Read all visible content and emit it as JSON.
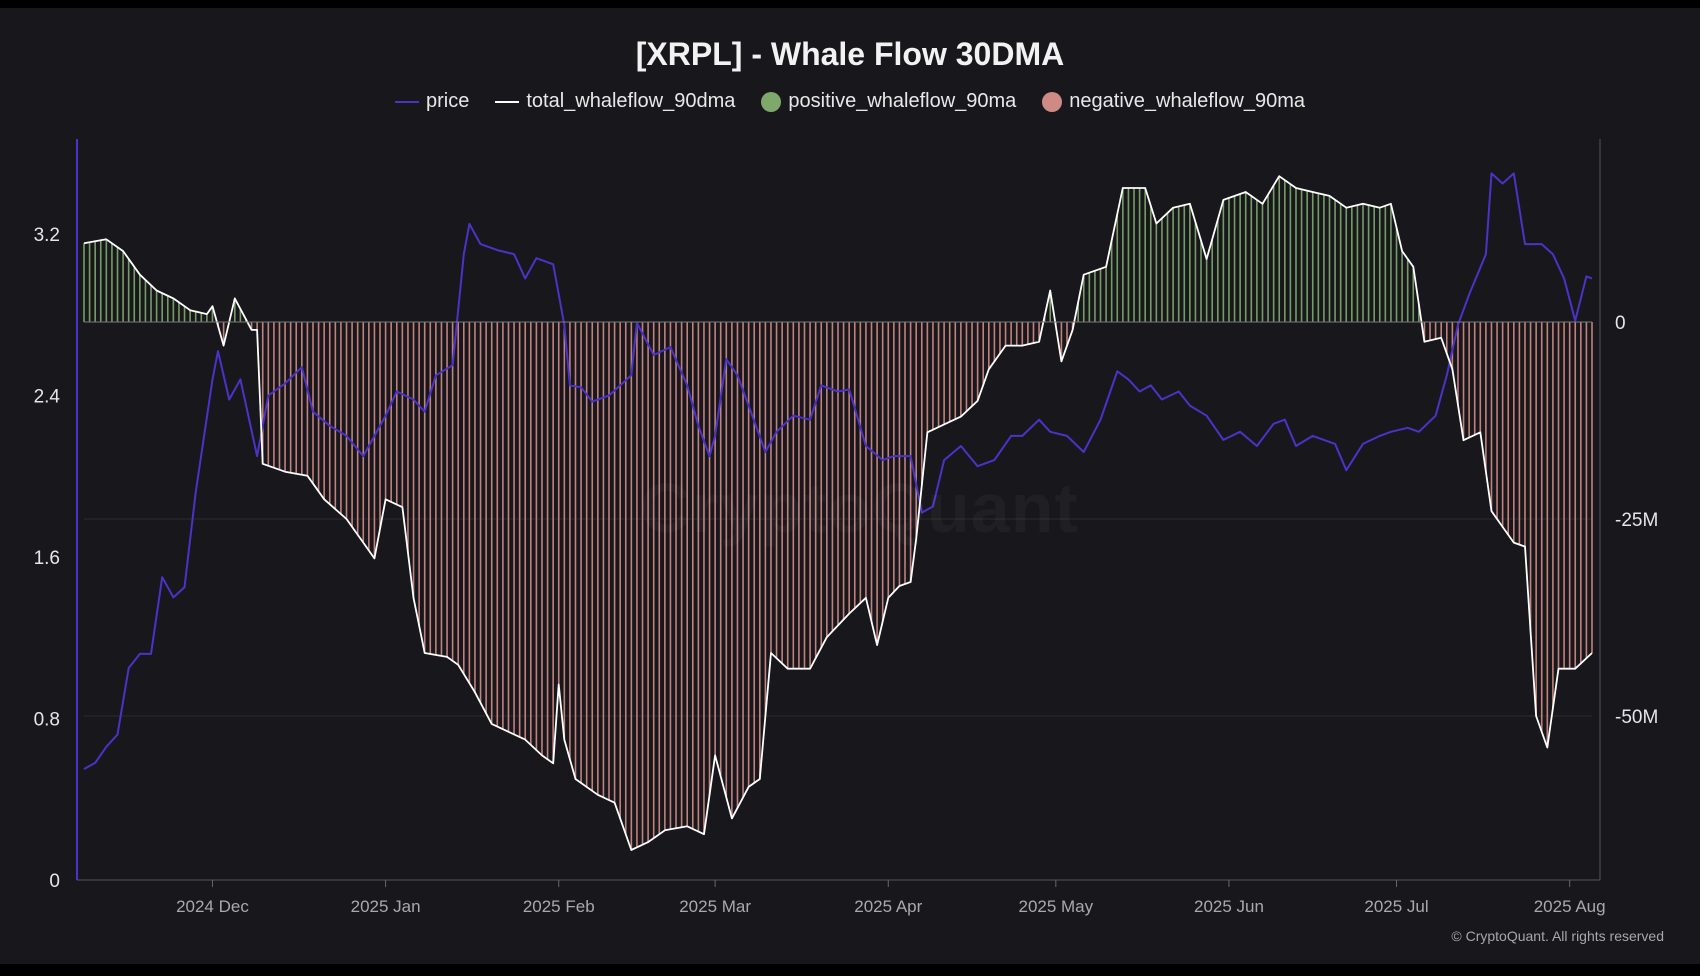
{
  "chart_data": {
    "type": "line",
    "title": "[XRPL] - Whale Flow 30DMA",
    "legend": [
      {
        "name": "price",
        "marker": "line",
        "color": "#4b32c8"
      },
      {
        "name": "total_whaleflow_90dma",
        "marker": "line",
        "color": "#ffffff"
      },
      {
        "name": "positive_whaleflow_90ma",
        "marker": "dot",
        "color": "#7fa86c"
      },
      {
        "name": "negative_whaleflow_90ma",
        "marker": "dot",
        "color": "#d08a86"
      }
    ],
    "legend_position": "top-center",
    "x_range": [
      "2024-11-08",
      "2025-08-05"
    ],
    "x_ticks": [
      {
        "date": "2024-12-01",
        "label": "2024 Dec"
      },
      {
        "date": "2025-01-01",
        "label": "2025 Jan"
      },
      {
        "date": "2025-02-01",
        "label": "2025 Feb"
      },
      {
        "date": "2025-03-01",
        "label": "2025 Mar"
      },
      {
        "date": "2025-04-01",
        "label": "2025 Apr"
      },
      {
        "date": "2025-05-01",
        "label": "2025 May"
      },
      {
        "date": "2025-06-01",
        "label": "2025 Jun"
      },
      {
        "date": "2025-07-01",
        "label": "2025 Jul"
      },
      {
        "date": "2025-08-01",
        "label": "2025 Aug"
      }
    ],
    "y_left": {
      "ylim": [
        0,
        3.3
      ],
      "ticks": [
        0,
        0.8,
        1.6,
        2.4,
        3.2
      ],
      "tick_labels": [
        "0",
        "0.8",
        "1.6",
        "2.4",
        "3.2"
      ]
    },
    "y_right": {
      "ylim": [
        -70,
        18
      ],
      "ticks": [
        0,
        -25,
        -50
      ],
      "tick_labels": [
        "0",
        "-25M",
        "-50M"
      ]
    },
    "grid": {
      "horizontal": true,
      "vertical": false
    },
    "series": [
      {
        "name": "price",
        "axis": "left",
        "color": "#4b32c8",
        "points": [
          [
            "2024-11-08",
            0.55
          ],
          [
            "2024-11-10",
            0.58
          ],
          [
            "2024-11-12",
            0.66
          ],
          [
            "2024-11-14",
            0.72
          ],
          [
            "2024-11-16",
            1.05
          ],
          [
            "2024-11-18",
            1.12
          ],
          [
            "2024-11-20",
            1.12
          ],
          [
            "2024-11-22",
            1.5
          ],
          [
            "2024-11-24",
            1.4
          ],
          [
            "2024-11-26",
            1.45
          ],
          [
            "2024-11-28",
            1.92
          ],
          [
            "2024-12-01",
            2.48
          ],
          [
            "2024-12-02",
            2.62
          ],
          [
            "2024-12-04",
            2.38
          ],
          [
            "2024-12-06",
            2.48
          ],
          [
            "2024-12-09",
            2.1
          ],
          [
            "2024-12-11",
            2.4
          ],
          [
            "2024-12-14",
            2.46
          ],
          [
            "2024-12-17",
            2.54
          ],
          [
            "2024-12-19",
            2.32
          ],
          [
            "2024-12-22",
            2.25
          ],
          [
            "2024-12-25",
            2.2
          ],
          [
            "2024-12-28",
            2.1
          ],
          [
            "2025-01-01",
            2.3
          ],
          [
            "2025-01-03",
            2.42
          ],
          [
            "2025-01-06",
            2.38
          ],
          [
            "2025-01-08",
            2.32
          ],
          [
            "2025-01-10",
            2.5
          ],
          [
            "2025-01-13",
            2.55
          ],
          [
            "2025-01-15",
            3.1
          ],
          [
            "2025-01-16",
            3.25
          ],
          [
            "2025-01-18",
            3.15
          ],
          [
            "2025-01-21",
            3.12
          ],
          [
            "2025-01-24",
            3.1
          ],
          [
            "2025-01-26",
            2.98
          ],
          [
            "2025-01-28",
            3.08
          ],
          [
            "2025-01-31",
            3.05
          ],
          [
            "2025-02-02",
            2.75
          ],
          [
            "2025-02-03",
            2.45
          ],
          [
            "2025-02-05",
            2.44
          ],
          [
            "2025-02-07",
            2.37
          ],
          [
            "2025-02-10",
            2.4
          ],
          [
            "2025-02-14",
            2.5
          ],
          [
            "2025-02-15",
            2.76
          ],
          [
            "2025-02-18",
            2.6
          ],
          [
            "2025-02-21",
            2.64
          ],
          [
            "2025-02-24",
            2.45
          ],
          [
            "2025-02-26",
            2.25
          ],
          [
            "2025-02-28",
            2.1
          ],
          [
            "2025-03-01",
            2.2
          ],
          [
            "2025-03-03",
            2.58
          ],
          [
            "2025-03-05",
            2.5
          ],
          [
            "2025-03-07",
            2.35
          ],
          [
            "2025-03-10",
            2.12
          ],
          [
            "2025-03-12",
            2.22
          ],
          [
            "2025-03-15",
            2.3
          ],
          [
            "2025-03-18",
            2.28
          ],
          [
            "2025-03-20",
            2.45
          ],
          [
            "2025-03-23",
            2.42
          ],
          [
            "2025-03-25",
            2.43
          ],
          [
            "2025-03-28",
            2.15
          ],
          [
            "2025-03-31",
            2.08
          ],
          [
            "2025-04-02",
            2.1
          ],
          [
            "2025-04-05",
            2.1
          ],
          [
            "2025-04-07",
            1.82
          ],
          [
            "2025-04-09",
            1.85
          ],
          [
            "2025-04-11",
            2.08
          ],
          [
            "2025-04-14",
            2.15
          ],
          [
            "2025-04-17",
            2.05
          ],
          [
            "2025-04-20",
            2.08
          ],
          [
            "2025-04-23",
            2.2
          ],
          [
            "2025-04-25",
            2.2
          ],
          [
            "2025-04-28",
            2.28
          ],
          [
            "2025-04-30",
            2.22
          ],
          [
            "2025-05-03",
            2.2
          ],
          [
            "2025-05-06",
            2.12
          ],
          [
            "2025-05-09",
            2.28
          ],
          [
            "2025-05-12",
            2.52
          ],
          [
            "2025-05-14",
            2.48
          ],
          [
            "2025-05-16",
            2.42
          ],
          [
            "2025-05-18",
            2.45
          ],
          [
            "2025-05-20",
            2.38
          ],
          [
            "2025-05-23",
            2.42
          ],
          [
            "2025-05-25",
            2.35
          ],
          [
            "2025-05-28",
            2.3
          ],
          [
            "2025-05-31",
            2.18
          ],
          [
            "2025-06-03",
            2.22
          ],
          [
            "2025-06-06",
            2.15
          ],
          [
            "2025-06-09",
            2.26
          ],
          [
            "2025-06-11",
            2.28
          ],
          [
            "2025-06-13",
            2.15
          ],
          [
            "2025-06-16",
            2.2
          ],
          [
            "2025-06-18",
            2.18
          ],
          [
            "2025-06-20",
            2.16
          ],
          [
            "2025-06-22",
            2.03
          ],
          [
            "2025-06-25",
            2.16
          ],
          [
            "2025-06-28",
            2.2
          ],
          [
            "2025-06-30",
            2.22
          ],
          [
            "2025-07-03",
            2.24
          ],
          [
            "2025-07-05",
            2.22
          ],
          [
            "2025-07-08",
            2.3
          ],
          [
            "2025-07-10",
            2.5
          ],
          [
            "2025-07-12",
            2.75
          ],
          [
            "2025-07-14",
            2.9
          ],
          [
            "2025-07-17",
            3.1
          ],
          [
            "2025-07-18",
            3.5
          ],
          [
            "2025-07-20",
            3.45
          ],
          [
            "2025-07-22",
            3.5
          ],
          [
            "2025-07-24",
            3.15
          ],
          [
            "2025-07-27",
            3.15
          ],
          [
            "2025-07-29",
            3.1
          ],
          [
            "2025-07-31",
            2.98
          ],
          [
            "2025-08-02",
            2.77
          ],
          [
            "2025-08-04",
            2.99
          ],
          [
            "2025-08-05",
            2.98
          ]
        ]
      },
      {
        "name": "total_whaleflow_90dma",
        "axis": "right",
        "color": "#ffffff",
        "points": [
          [
            "2024-11-08",
            10
          ],
          [
            "2024-11-12",
            10.5
          ],
          [
            "2024-11-15",
            9
          ],
          [
            "2024-11-18",
            6
          ],
          [
            "2024-11-21",
            4
          ],
          [
            "2024-11-24",
            3
          ],
          [
            "2024-11-27",
            1.5
          ],
          [
            "2024-11-30",
            1
          ],
          [
            "2024-12-01",
            2
          ],
          [
            "2024-12-03",
            -3
          ],
          [
            "2024-12-05",
            3
          ],
          [
            "2024-12-08",
            -1
          ],
          [
            "2024-12-09",
            -1
          ],
          [
            "2024-12-10",
            -18
          ],
          [
            "2024-12-14",
            -19
          ],
          [
            "2024-12-18",
            -19.5
          ],
          [
            "2024-12-21",
            -22.5
          ],
          [
            "2024-12-25",
            -25
          ],
          [
            "2024-12-28",
            -28
          ],
          [
            "2024-12-30",
            -30
          ],
          [
            "2025-01-01",
            -22.5
          ],
          [
            "2025-01-04",
            -23.5
          ],
          [
            "2025-01-06",
            -35
          ],
          [
            "2025-01-08",
            -42
          ],
          [
            "2025-01-12",
            -42.5
          ],
          [
            "2025-01-14",
            -43.5
          ],
          [
            "2025-01-17",
            -47
          ],
          [
            "2025-01-20",
            -51
          ],
          [
            "2025-01-23",
            -52
          ],
          [
            "2025-01-26",
            -53
          ],
          [
            "2025-01-29",
            -55
          ],
          [
            "2025-01-31",
            -56
          ],
          [
            "2025-02-01",
            -46
          ],
          [
            "2025-02-02",
            -53
          ],
          [
            "2025-02-04",
            -58
          ],
          [
            "2025-02-08",
            -60
          ],
          [
            "2025-02-11",
            -61
          ],
          [
            "2025-02-14",
            -67
          ],
          [
            "2025-02-17",
            -66
          ],
          [
            "2025-02-20",
            -64.5
          ],
          [
            "2025-02-24",
            -64
          ],
          [
            "2025-02-27",
            -65
          ],
          [
            "2025-03-01",
            -55
          ],
          [
            "2025-03-04",
            -63
          ],
          [
            "2025-03-07",
            -59
          ],
          [
            "2025-03-09",
            -58
          ],
          [
            "2025-03-11",
            -42
          ],
          [
            "2025-03-14",
            -44
          ],
          [
            "2025-03-18",
            -44
          ],
          [
            "2025-03-21",
            -40
          ],
          [
            "2025-03-25",
            -37
          ],
          [
            "2025-03-28",
            -35
          ],
          [
            "2025-03-30",
            -41
          ],
          [
            "2025-04-01",
            -35
          ],
          [
            "2025-04-03",
            -33.5
          ],
          [
            "2025-04-05",
            -33
          ],
          [
            "2025-04-06",
            -27.5
          ],
          [
            "2025-04-08",
            -14
          ],
          [
            "2025-04-11",
            -13
          ],
          [
            "2025-04-14",
            -12
          ],
          [
            "2025-04-17",
            -10
          ],
          [
            "2025-04-19",
            -6
          ],
          [
            "2025-04-22",
            -3
          ],
          [
            "2025-04-25",
            -3
          ],
          [
            "2025-04-28",
            -2.5
          ],
          [
            "2025-04-30",
            4
          ],
          [
            "2025-05-02",
            -5
          ],
          [
            "2025-05-04",
            -1
          ],
          [
            "2025-05-06",
            6
          ],
          [
            "2025-05-10",
            7
          ],
          [
            "2025-05-13",
            17
          ],
          [
            "2025-05-17",
            17
          ],
          [
            "2025-05-19",
            12.5
          ],
          [
            "2025-05-22",
            14.5
          ],
          [
            "2025-05-25",
            15
          ],
          [
            "2025-05-28",
            8
          ],
          [
            "2025-05-31",
            15.5
          ],
          [
            "2025-06-04",
            16.5
          ],
          [
            "2025-06-07",
            15
          ],
          [
            "2025-06-10",
            18.5
          ],
          [
            "2025-06-13",
            17
          ],
          [
            "2025-06-16",
            16.5
          ],
          [
            "2025-06-19",
            16
          ],
          [
            "2025-06-22",
            14.5
          ],
          [
            "2025-06-25",
            15
          ],
          [
            "2025-06-28",
            14.5
          ],
          [
            "2025-06-30",
            15
          ],
          [
            "2025-07-02",
            9
          ],
          [
            "2025-07-04",
            7
          ],
          [
            "2025-07-06",
            -2.5
          ],
          [
            "2025-07-09",
            -2
          ],
          [
            "2025-07-11",
            -6
          ],
          [
            "2025-07-13",
            -15
          ],
          [
            "2025-07-16",
            -14
          ],
          [
            "2025-07-18",
            -24
          ],
          [
            "2025-07-20",
            -26
          ],
          [
            "2025-07-22",
            -28
          ],
          [
            "2025-07-24",
            -28.5
          ],
          [
            "2025-07-26",
            -50
          ],
          [
            "2025-07-28",
            -54
          ],
          [
            "2025-07-30",
            -44
          ],
          [
            "2025-08-02",
            -44
          ],
          [
            "2025-08-05",
            -42
          ]
        ]
      }
    ],
    "positive_whaleflow_90ma": {
      "color": "#7fa86c",
      "style": "bars above 0 on right axis, mirroring total_whaleflow_90dma"
    },
    "negative_whaleflow_90ma": {
      "color": "#d08a86",
      "style": "bars below 0 on right axis, mirroring total_whaleflow_90dma"
    }
  },
  "watermark": "CryptoQuant",
  "copyright": "© CryptoQuant. All rights reserved"
}
